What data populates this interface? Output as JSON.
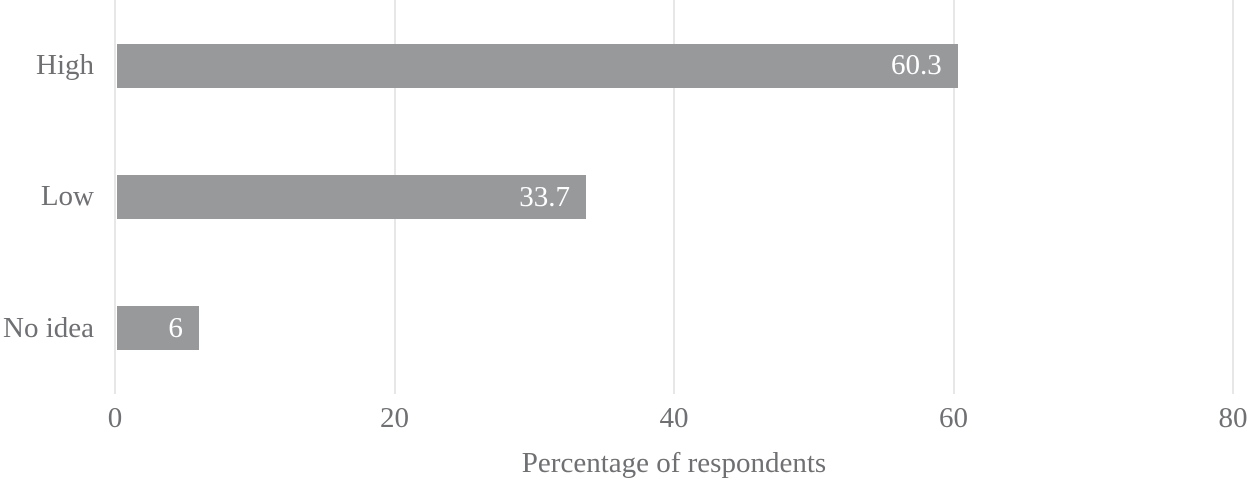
{
  "chart_data": {
    "type": "bar",
    "orientation": "horizontal",
    "categories": [
      "High",
      "Low",
      "No idea"
    ],
    "values": [
      60.3,
      33.7,
      6
    ],
    "data_labels": [
      "60.3",
      "33.7",
      "6"
    ],
    "title": "",
    "xlabel": "Percentage of respondents",
    "ylabel": "",
    "xticks": [
      0,
      20,
      40,
      60,
      80
    ],
    "xlim": [
      0,
      80
    ],
    "grid": "vertical-gridlines-on",
    "legend": "none",
    "colors": {
      "bar_fill": "#98999b",
      "data_label_text": "#ffffff",
      "axis_text": "#6f7073",
      "gridline": "#e7e7e7",
      "background": "#ffffff"
    }
  }
}
